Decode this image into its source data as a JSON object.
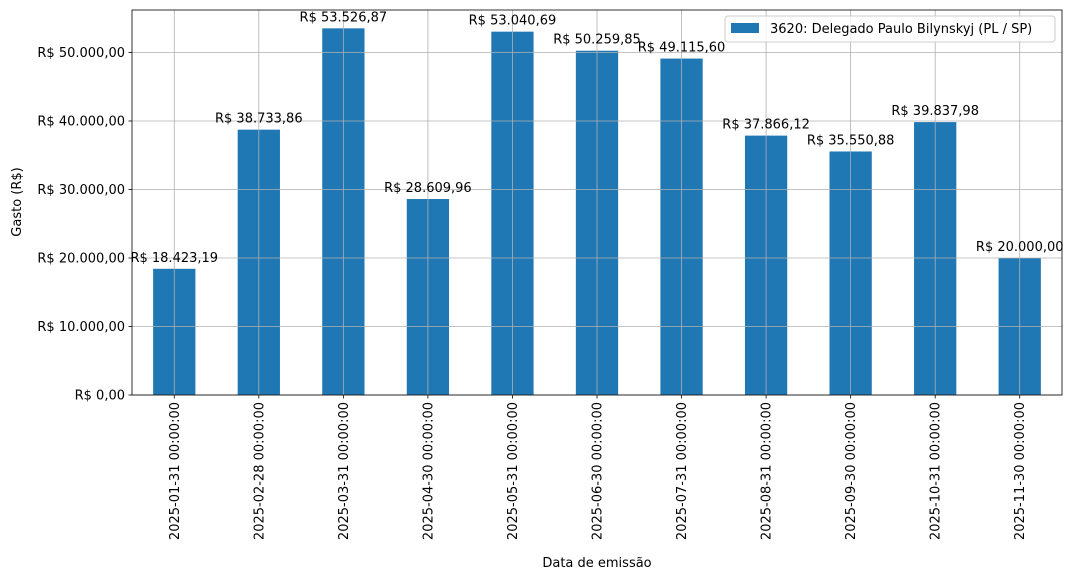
{
  "chart_data": {
    "type": "bar",
    "title": "",
    "xlabel": "Data de emissão",
    "ylabel": "Gasto (R$)",
    "ylim": [
      0,
      56203
    ],
    "yticks": [
      0,
      10000,
      20000,
      30000,
      40000,
      50000
    ],
    "ytick_labels": [
      "R$ 0,00",
      "R$ 10.000,00",
      "R$ 20.000,00",
      "R$ 30.000,00",
      "R$ 40.000,00",
      "R$ 50.000,00"
    ],
    "grid": true,
    "legend_position": "top-right",
    "categories": [
      "2025-01-31 00:00:00",
      "2025-02-28 00:00:00",
      "2025-03-31 00:00:00",
      "2025-04-30 00:00:00",
      "2025-05-31 00:00:00",
      "2025-06-30 00:00:00",
      "2025-07-31 00:00:00",
      "2025-08-31 00:00:00",
      "2025-09-30 00:00:00",
      "2025-10-31 00:00:00",
      "2025-11-30 00:00:00"
    ],
    "series": [
      {
        "name": "3620: Delegado Paulo Bilynskyj (PL / SP)",
        "color": "#1f77b4",
        "values": [
          18423.19,
          38733.86,
          53526.87,
          28609.96,
          53040.69,
          50259.85,
          49115.6,
          37866.12,
          35550.88,
          39837.98,
          20000.0
        ],
        "data_labels": [
          "R$ 18.423,19",
          "R$ 38.733,86",
          "R$ 53.526,87",
          "R$ 28.609,96",
          "R$ 53.040,69",
          "R$ 50.259,85",
          "R$ 49.115,60",
          "R$ 37.866,12",
          "R$ 35.550,88",
          "R$ 39.837,98",
          "R$ 20.000,00"
        ]
      }
    ]
  }
}
